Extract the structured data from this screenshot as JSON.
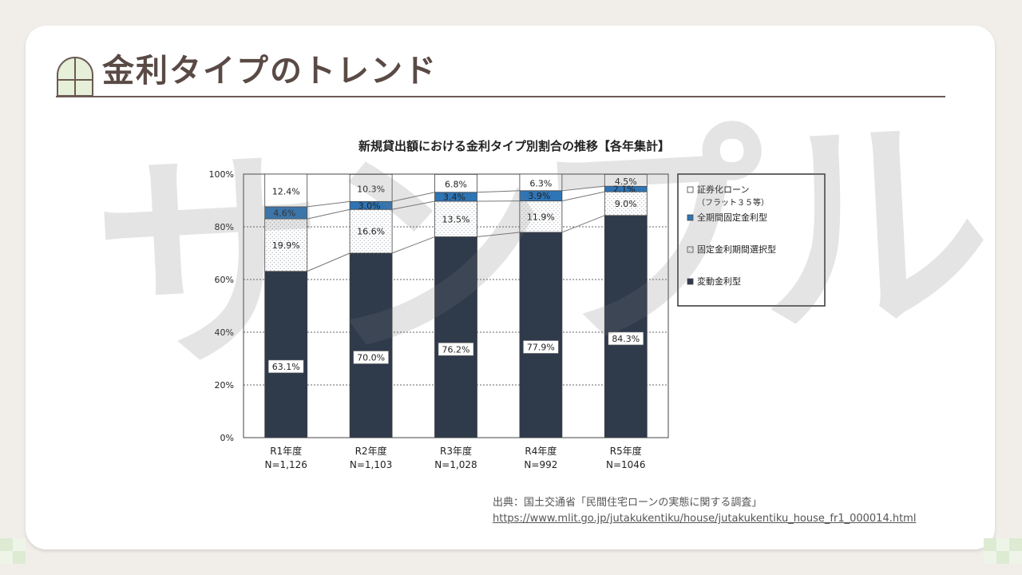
{
  "slide": {
    "title": "金利タイプのトレンド",
    "watermark": "サンプル"
  },
  "source": {
    "citation": "出典：国土交通省「民間住宅ローンの実態に関する調査」",
    "url": "https://www.mlit.go.jp/jutakukentiku/house/jutakukentiku_house_fr1_000014.html"
  },
  "colors": {
    "title": "#5a4a45",
    "variable": "#2f3a4b",
    "full_fixed": "#2e75b6",
    "fixed_period": "#ffffff",
    "securitized": "#ffffff",
    "corner_green": "#dcebd2"
  },
  "chart_data": {
    "type": "bar",
    "stacked": true,
    "title": "新規貸出額における金利タイプ別割合の推移【各年集計】",
    "categories": [
      "R1年度",
      "R2年度",
      "R3年度",
      "R4年度",
      "R5年度"
    ],
    "category_sublabels": [
      "N=1,126",
      "N=1,103",
      "N=1,028",
      "N=992",
      "N=1046"
    ],
    "ylim": [
      0,
      100
    ],
    "yticks": [
      "0%",
      "20%",
      "40%",
      "60%",
      "80%",
      "100%"
    ],
    "grid": true,
    "series": [
      {
        "name": "変動金利型",
        "values": [
          63.1,
          70.0,
          76.2,
          77.9,
          84.3
        ],
        "labels": [
          "63.1%",
          "70.0%",
          "76.2%",
          "77.9%",
          "84.3%"
        ]
      },
      {
        "name": "固定金利期間選択型",
        "values": [
          19.9,
          16.6,
          13.5,
          11.9,
          9.0
        ],
        "labels": [
          "19.9%",
          "16.6%",
          "13.5%",
          "11.9%",
          "9.0%"
        ]
      },
      {
        "name": "全期間固定金利型",
        "values": [
          4.6,
          3.0,
          3.4,
          3.9,
          2.1
        ],
        "labels": [
          "4.6%",
          "3.0%",
          "3.4%",
          "3.9%",
          "2.1%"
        ]
      },
      {
        "name": "証券化ローン",
        "name_line2": "（フラット３５等）",
        "values": [
          12.4,
          10.3,
          6.8,
          6.3,
          4.5
        ],
        "labels": [
          "12.4%",
          "10.3%",
          "6.8%",
          "6.3%",
          "4.5%"
        ]
      }
    ],
    "legend_order": [
      3,
      2,
      1,
      0
    ],
    "legend_position": "right"
  }
}
